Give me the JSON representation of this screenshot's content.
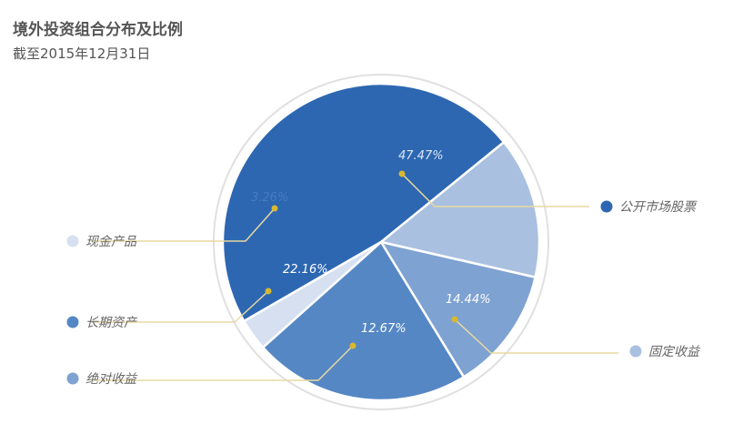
{
  "title": "境外投资组合分布及比例",
  "subtitle": "截至2015年12月31日",
  "chart_data": {
    "type": "pie",
    "title": "境外投资组合分布及比例",
    "subtitle": "截至2015年12月31日",
    "slices": [
      {
        "label": "公开市场股票",
        "value": 47.47,
        "display": "47.47%",
        "color": "#2d67b1",
        "label_color": "#dbe6f5"
      },
      {
        "label": "固定收益",
        "value": 14.44,
        "display": "14.44%",
        "color": "#a9c0e0",
        "label_color": "#ffffff"
      },
      {
        "label": "绝对收益",
        "value": 12.67,
        "display": "12.67%",
        "color": "#7ea2d1",
        "label_color": "#ffffff"
      },
      {
        "label": "长期资产",
        "value": 22.16,
        "display": "22.16%",
        "color": "#5587c4",
        "label_color": "#ffffff"
      },
      {
        "label": "现金产品",
        "value": 3.26,
        "display": "3.26%",
        "color": "#d6e0f1",
        "label_color": "#4a7cc0"
      }
    ],
    "legend_position": "sides",
    "leader_color": "#e8d9a0",
    "marker_color": "#d7b830"
  }
}
